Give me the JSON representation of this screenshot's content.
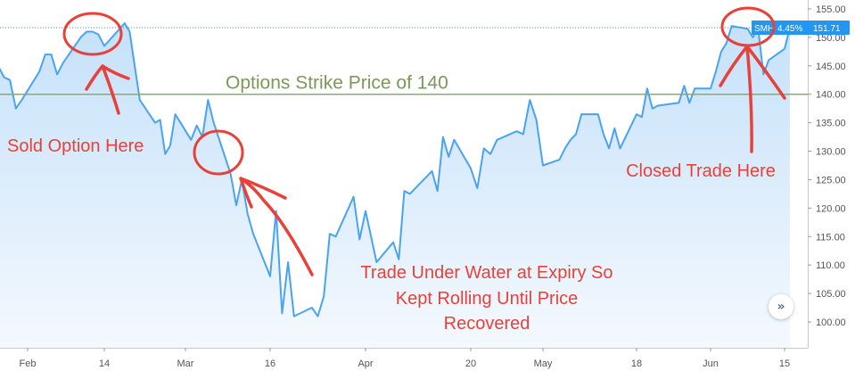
{
  "chart_data": {
    "type": "line",
    "series": [
      {
        "values": [
          {
            "x": "Jan 27",
            "y": 145
          },
          {
            "x": "Jan 28",
            "y": 143
          },
          {
            "x": "Jan 29",
            "y": 142.5
          },
          {
            "x": "Jan 30",
            "y": 137.5
          },
          {
            "x": "Jan 31",
            "y": 139
          },
          {
            "x": "Feb 3",
            "y": 144
          },
          {
            "x": "Feb 4",
            "y": 147
          },
          {
            "x": "Feb 5",
            "y": 147
          },
          {
            "x": "Feb 6",
            "y": 143.5
          },
          {
            "x": "Feb 7",
            "y": 145.5
          },
          {
            "x": "Feb 10",
            "y": 150
          },
          {
            "x": "Feb 11",
            "y": 151
          },
          {
            "x": "Feb 12",
            "y": 151
          },
          {
            "x": "Feb 13",
            "y": 150.5
          },
          {
            "x": "Feb 14",
            "y": 148.5
          },
          {
            "x": "Feb 18",
            "y": 152.5
          },
          {
            "x": "Feb 19",
            "y": 151
          },
          {
            "x": "Feb 20",
            "y": 145
          },
          {
            "x": "Feb 21",
            "y": 139
          },
          {
            "x": "Feb 24",
            "y": 135
          },
          {
            "x": "Feb 25",
            "y": 135.5
          },
          {
            "x": "Feb 26",
            "y": 129.5
          },
          {
            "x": "Feb 27",
            "y": 131
          },
          {
            "x": "Feb 28",
            "y": 136.5
          },
          {
            "x": "Mar 2",
            "y": 132
          },
          {
            "x": "Mar 3",
            "y": 134.5
          },
          {
            "x": "Mar 4",
            "y": 132.5
          },
          {
            "x": "Mar 5",
            "y": 139
          },
          {
            "x": "Mar 6",
            "y": 135
          },
          {
            "x": "Mar 9",
            "y": 126
          },
          {
            "x": "Mar 10",
            "y": 120.5
          },
          {
            "x": "Mar 11",
            "y": 125
          },
          {
            "x": "Mar 12",
            "y": 119
          },
          {
            "x": "Mar 13",
            "y": 115.5
          },
          {
            "x": "Mar 16",
            "y": 108
          },
          {
            "x": "Mar 17",
            "y": 119.5
          },
          {
            "x": "Mar 18",
            "y": 101.5
          },
          {
            "x": "Mar 19",
            "y": 110.5
          },
          {
            "x": "Mar 20",
            "y": 101
          },
          {
            "x": "Mar 23",
            "y": 102.5
          },
          {
            "x": "Mar 24",
            "y": 101
          },
          {
            "x": "Mar 25",
            "y": 104.5
          },
          {
            "x": "Mar 26",
            "y": 115.5
          },
          {
            "x": "Mar 27",
            "y": 115
          },
          {
            "x": "Mar 30",
            "y": 122
          },
          {
            "x": "Mar 31",
            "y": 114.5
          },
          {
            "x": "Apr 1",
            "y": 119.5
          },
          {
            "x": "Apr 2",
            "y": 115
          },
          {
            "x": "Apr 3",
            "y": 110.5
          },
          {
            "x": "Apr 6",
            "y": 114
          },
          {
            "x": "Apr 7",
            "y": 111
          },
          {
            "x": "Apr 8",
            "y": 123
          },
          {
            "x": "Apr 9",
            "y": 122.5
          },
          {
            "x": "Apr 13",
            "y": 126.5
          },
          {
            "x": "Apr 14",
            "y": 123
          },
          {
            "x": "Apr 15",
            "y": 132.5
          },
          {
            "x": "Apr 16",
            "y": 129
          },
          {
            "x": "Apr 17",
            "y": 132
          },
          {
            "x": "Apr 20",
            "y": 127
          },
          {
            "x": "Apr 21",
            "y": 123.5
          },
          {
            "x": "Apr 22",
            "y": 130.5
          },
          {
            "x": "Apr 23",
            "y": 129.5
          },
          {
            "x": "Apr 24",
            "y": 132
          },
          {
            "x": "Apr 27",
            "y": 133.5
          },
          {
            "x": "Apr 28",
            "y": 133
          },
          {
            "x": "Apr 29",
            "y": 139
          },
          {
            "x": "Apr 30",
            "y": 135.5
          },
          {
            "x": "May 1",
            "y": 127.5
          },
          {
            "x": "May 4",
            "y": 128.5
          },
          {
            "x": "May 5",
            "y": 130.5
          },
          {
            "x": "May 6",
            "y": 132
          },
          {
            "x": "May 7",
            "y": 133
          },
          {
            "x": "May 8",
            "y": 136.5
          },
          {
            "x": "May 11",
            "y": 136.5
          },
          {
            "x": "May 12",
            "y": 133
          },
          {
            "x": "May 13",
            "y": 130.5
          },
          {
            "x": "May 14",
            "y": 134
          },
          {
            "x": "May 15",
            "y": 130.5
          },
          {
            "x": "May 18",
            "y": 136.5
          },
          {
            "x": "May 19",
            "y": 136
          },
          {
            "x": "May 20",
            "y": 141
          },
          {
            "x": "May 21",
            "y": 137.5
          },
          {
            "x": "May 22",
            "y": 138
          },
          {
            "x": "May 26",
            "y": 138.5
          },
          {
            "x": "May 27",
            "y": 141.5
          },
          {
            "x": "May 28",
            "y": 138.5
          },
          {
            "x": "May 29",
            "y": 141
          },
          {
            "x": "Jun 1",
            "y": 141
          },
          {
            "x": "Jun 2",
            "y": 144
          },
          {
            "x": "Jun 3",
            "y": 147.5
          },
          {
            "x": "Jun 4",
            "y": 149
          },
          {
            "x": "Jun 5",
            "y": 152
          },
          {
            "x": "Jun 8",
            "y": 151.5
          },
          {
            "x": "Jun 9",
            "y": 150
          },
          {
            "x": "Jun 10",
            "y": 151.5
          },
          {
            "x": "Jun 11",
            "y": 143.5
          },
          {
            "x": "Jun 12",
            "y": 146
          },
          {
            "x": "Jun 15",
            "y": 148
          },
          {
            "x": "Jun 16",
            "y": 151.7
          }
        ]
      }
    ],
    "x_axis_labels": [
      "Feb",
      "14",
      "Mar",
      "16",
      "Apr",
      "20",
      "May",
      "18",
      "Jun",
      "15"
    ],
    "x_axis_label_dates": [
      "Feb 1",
      "Feb 14",
      "Mar 1",
      "Mar 16",
      "Apr 1",
      "Apr 20",
      "May 1",
      "May 18",
      "Jun 1",
      "Jun 15"
    ],
    "y_ticks": [
      "100.00",
      "105.00",
      "110.00",
      "115.00",
      "120.00",
      "125.00",
      "130.00",
      "135.00",
      "140.00",
      "145.00",
      "150.00",
      "155.00"
    ],
    "ylim": [
      97,
      156
    ],
    "title": "",
    "xlabel": "",
    "ylabel": "",
    "grid": false,
    "strike_line": {
      "value": 140,
      "label": "Options Strike Price of 140",
      "color": "#8aab6a"
    },
    "last_price": {
      "value": 151.71,
      "symbol": "SMH",
      "change": "4.45%",
      "label": "151.71",
      "color": "#2196f3"
    },
    "annotations": [
      {
        "text": "Sold Option Here",
        "color": "#e8413a"
      },
      {
        "text": "Trade Under Water at Expiry So",
        "color": "#e8413a"
      },
      {
        "text": "Kept Rolling Until Price",
        "color": "#e8413a"
      },
      {
        "text": "Recovered",
        "color": "#e8413a"
      },
      {
        "text": "Closed Trade Here",
        "color": "#e8413a"
      }
    ],
    "line_color": "#4aa3f0",
    "fill_color_top": "#c5e1fa",
    "fill_color_bottom": "#f4f9fe",
    "scroll_button_icon": "double-chevron-right-icon"
  }
}
